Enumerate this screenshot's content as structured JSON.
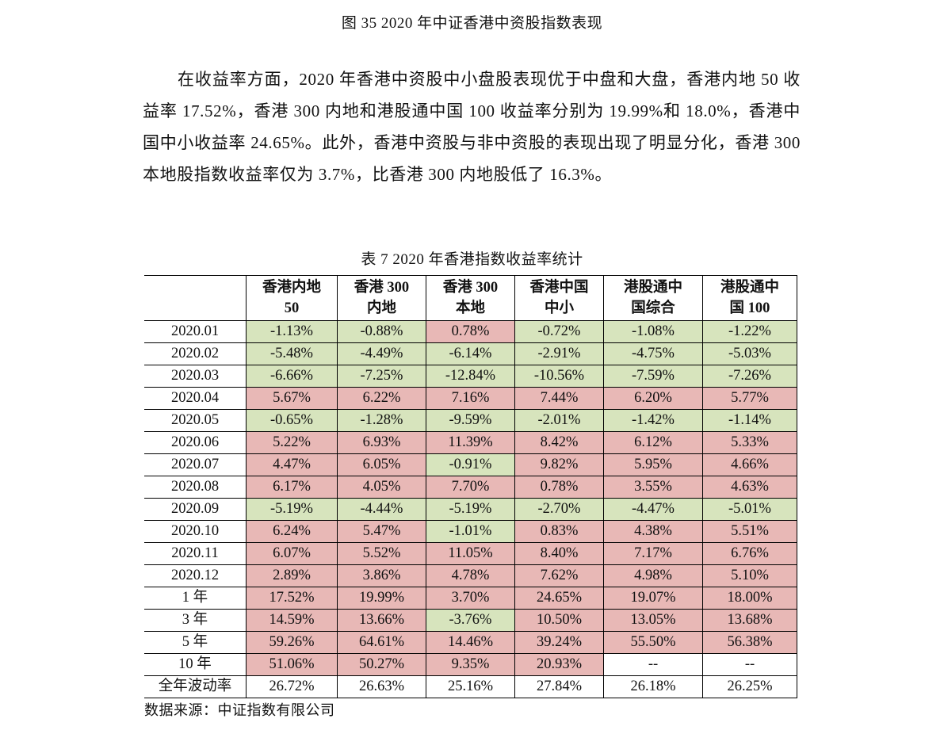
{
  "figure_caption": "图 35 2020 年中证香港中资股指数表现",
  "paragraph": "在收益率方面，2020 年香港中资股中小盘股表现优于中盘和大盘，香港内地 50 收益率 17.52%，香港 300 内地和港股通中国 100 收益率分别为 19.99%和 18.0%，香港中国中小收益率 24.65%。此外，香港中资股与非中资股的表现出现了明显分化，香港 300 本地股指数收益率仅为 3.7%，比香港 300 内地股低了 16.3%。",
  "table_caption": "表 7 2020 年香港指数收益率统计",
  "colors": {
    "positive_cell": "#e8b8b6",
    "negative_cell": "#d7e4bd"
  },
  "table": {
    "headers": [
      [
        "香港内地",
        "50"
      ],
      [
        "香港 300",
        "内地"
      ],
      [
        "香港 300",
        "本地"
      ],
      [
        "香港中国",
        "中小"
      ],
      [
        "港股通中",
        "国综合"
      ],
      [
        "港股通中",
        "国 100"
      ]
    ],
    "rows": [
      {
        "label": "2020.01",
        "values": [
          "-1.13%",
          "-0.88%",
          "0.78%",
          "-0.72%",
          "-1.08%",
          "-1.22%"
        ],
        "shade": [
          "neg",
          "neg",
          "pos",
          "neg",
          "neg",
          "neg"
        ]
      },
      {
        "label": "2020.02",
        "values": [
          "-5.48%",
          "-4.49%",
          "-6.14%",
          "-2.91%",
          "-4.75%",
          "-5.03%"
        ],
        "shade": [
          "neg",
          "neg",
          "neg",
          "neg",
          "neg",
          "neg"
        ]
      },
      {
        "label": "2020.03",
        "values": [
          "-6.66%",
          "-7.25%",
          "-12.84%",
          "-10.56%",
          "-7.59%",
          "-7.26%"
        ],
        "shade": [
          "neg",
          "neg",
          "neg",
          "neg",
          "neg",
          "neg"
        ]
      },
      {
        "label": "2020.04",
        "values": [
          "5.67%",
          "6.22%",
          "7.16%",
          "7.44%",
          "6.20%",
          "5.77%"
        ],
        "shade": [
          "pos",
          "pos",
          "pos",
          "pos",
          "pos",
          "pos"
        ]
      },
      {
        "label": "2020.05",
        "values": [
          "-0.65%",
          "-1.28%",
          "-9.59%",
          "-2.01%",
          "-1.42%",
          "-1.14%"
        ],
        "shade": [
          "neg",
          "neg",
          "neg",
          "neg",
          "neg",
          "neg"
        ]
      },
      {
        "label": "2020.06",
        "values": [
          "5.22%",
          "6.93%",
          "11.39%",
          "8.42%",
          "6.12%",
          "5.33%"
        ],
        "shade": [
          "pos",
          "pos",
          "pos",
          "pos",
          "pos",
          "pos"
        ]
      },
      {
        "label": "2020.07",
        "values": [
          "4.47%",
          "6.05%",
          "-0.91%",
          "9.82%",
          "5.95%",
          "4.66%"
        ],
        "shade": [
          "pos",
          "pos",
          "neg",
          "pos",
          "pos",
          "pos"
        ]
      },
      {
        "label": "2020.08",
        "values": [
          "6.17%",
          "4.05%",
          "7.70%",
          "0.78%",
          "3.55%",
          "4.63%"
        ],
        "shade": [
          "pos",
          "pos",
          "pos",
          "pos",
          "pos",
          "pos"
        ]
      },
      {
        "label": "2020.09",
        "values": [
          "-5.19%",
          "-4.44%",
          "-5.19%",
          "-2.70%",
          "-4.47%",
          "-5.01%"
        ],
        "shade": [
          "neg",
          "neg",
          "neg",
          "neg",
          "neg",
          "neg"
        ]
      },
      {
        "label": "2020.10",
        "values": [
          "6.24%",
          "5.47%",
          "-1.01%",
          "0.83%",
          "4.38%",
          "5.51%"
        ],
        "shade": [
          "pos",
          "pos",
          "neg",
          "pos",
          "pos",
          "pos"
        ]
      },
      {
        "label": "2020.11",
        "values": [
          "6.07%",
          "5.52%",
          "11.05%",
          "8.40%",
          "7.17%",
          "6.76%"
        ],
        "shade": [
          "pos",
          "pos",
          "pos",
          "pos",
          "pos",
          "pos"
        ]
      },
      {
        "label": "2020.12",
        "values": [
          "2.89%",
          "3.86%",
          "4.78%",
          "7.62%",
          "4.98%",
          "5.10%"
        ],
        "shade": [
          "pos",
          "pos",
          "pos",
          "pos",
          "pos",
          "pos"
        ]
      },
      {
        "label": "1 年",
        "values": [
          "17.52%",
          "19.99%",
          "3.70%",
          "24.65%",
          "19.07%",
          "18.00%"
        ],
        "shade": [
          "pos",
          "pos",
          "pos",
          "pos",
          "pos",
          "pos"
        ]
      },
      {
        "label": "3 年",
        "values": [
          "14.59%",
          "13.66%",
          "-3.76%",
          "10.50%",
          "13.05%",
          "13.68%"
        ],
        "shade": [
          "pos",
          "pos",
          "neg",
          "pos",
          "pos",
          "pos"
        ]
      },
      {
        "label": "5 年",
        "values": [
          "59.26%",
          "64.61%",
          "14.46%",
          "39.24%",
          "55.50%",
          "56.38%"
        ],
        "shade": [
          "pos",
          "pos",
          "pos",
          "pos",
          "pos",
          "pos"
        ]
      },
      {
        "label": "10 年",
        "values": [
          "51.06%",
          "50.27%",
          "9.35%",
          "20.93%",
          "--",
          "--"
        ],
        "shade": [
          "pos",
          "pos",
          "pos",
          "pos",
          "plain",
          "plain"
        ]
      },
      {
        "label": "全年波动率",
        "values": [
          "26.72%",
          "26.63%",
          "25.16%",
          "27.84%",
          "26.18%",
          "26.25%"
        ],
        "shade": [
          "plain",
          "plain",
          "plain",
          "plain",
          "plain",
          "plain"
        ]
      }
    ]
  },
  "source_note": "数据来源：中证指数有限公司"
}
